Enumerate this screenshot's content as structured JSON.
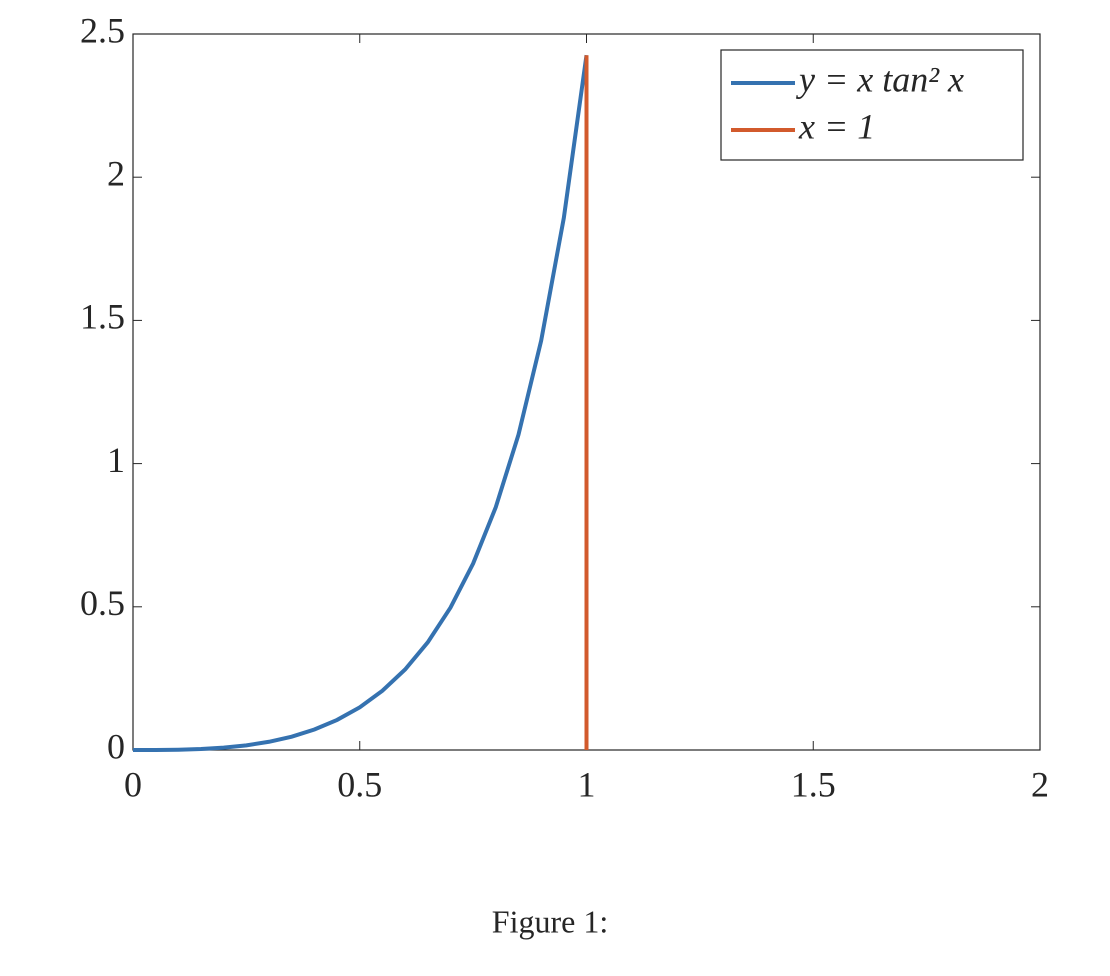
{
  "chart_data": {
    "type": "line",
    "series": [
      {
        "name": "y = x tan² x",
        "color": "#3572b0",
        "x": [
          0,
          0.05,
          0.1,
          0.15,
          0.2,
          0.25,
          0.3,
          0.35,
          0.4,
          0.45,
          0.5,
          0.55,
          0.6,
          0.65,
          0.7,
          0.75,
          0.8,
          0.85,
          0.9,
          0.95,
          1
        ],
        "values": [
          0,
          0.0001,
          0.001,
          0.0034,
          0.0082,
          0.0163,
          0.0287,
          0.0464,
          0.0715,
          0.105,
          0.149,
          0.207,
          0.281,
          0.376,
          0.497,
          0.651,
          0.848,
          1.101,
          1.429,
          1.858,
          2.426
        ]
      },
      {
        "name": "x = 1",
        "color": "#d25a2c",
        "x": [
          1,
          1
        ],
        "values": [
          0,
          2.426
        ]
      }
    ],
    "xlim": [
      0,
      2
    ],
    "ylim": [
      0,
      2.5
    ],
    "xticks": [
      0,
      0.5,
      1,
      1.5,
      2
    ],
    "yticks": [
      0,
      0.5,
      1,
      1.5,
      2,
      2.5
    ],
    "grid": false,
    "legend": "top-right"
  },
  "caption": "Figure 1:"
}
